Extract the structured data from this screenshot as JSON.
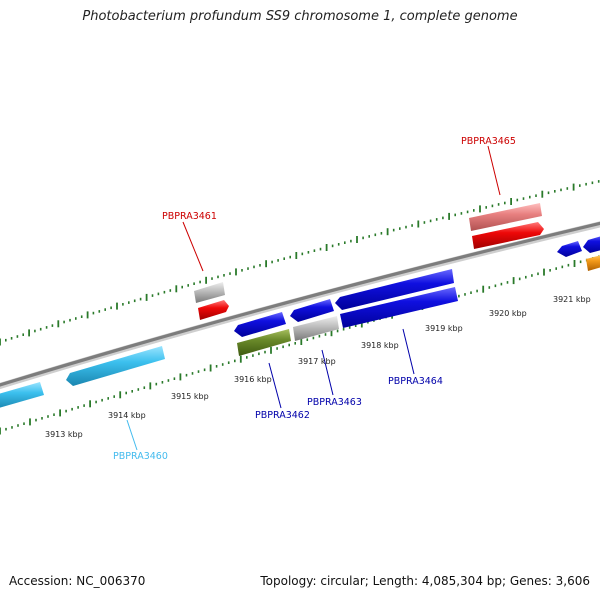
{
  "title": "Photobacterium profundum SS9 chromosome 1, complete genome",
  "footer": {
    "accession": "Accession: NC_006370",
    "info": "Topology: circular; Length: 4,085,304 bp; Genes: 3,606"
  },
  "colors": {
    "backbone": "#8a8a8a",
    "tick": "#2a7a2a",
    "gene_blue": "#0a0ad8",
    "gene_cyan": "#3cc0ee",
    "gene_red": "#ee0808",
    "gene_pink": "#e88080",
    "gene_gray": "#b8b8b8",
    "gene_olive": "#6a8a2a",
    "gene_orange": "#f39a1a",
    "label_red": "#cc0000",
    "label_blue": "#0000aa",
    "label_cyan": "#44bbee"
  },
  "scale": {
    "unit": "kbp",
    "labels": [
      "3913 kbp",
      "3914 kbp",
      "3915 kbp",
      "3916 kbp",
      "3917 kbp",
      "3918 kbp",
      "3919 kbp",
      "3920 kbp",
      "3921 kbp"
    ]
  },
  "gene_labels": {
    "PBPRA3460": "PBPRA3460",
    "PBPRA3461": "PBPRA3461",
    "PBPRA3462": "PBPRA3462",
    "PBPRA3463": "PBPRA3463",
    "PBPRA3464": "PBPRA3464",
    "PBPRA3465": "PBPRA3465"
  }
}
